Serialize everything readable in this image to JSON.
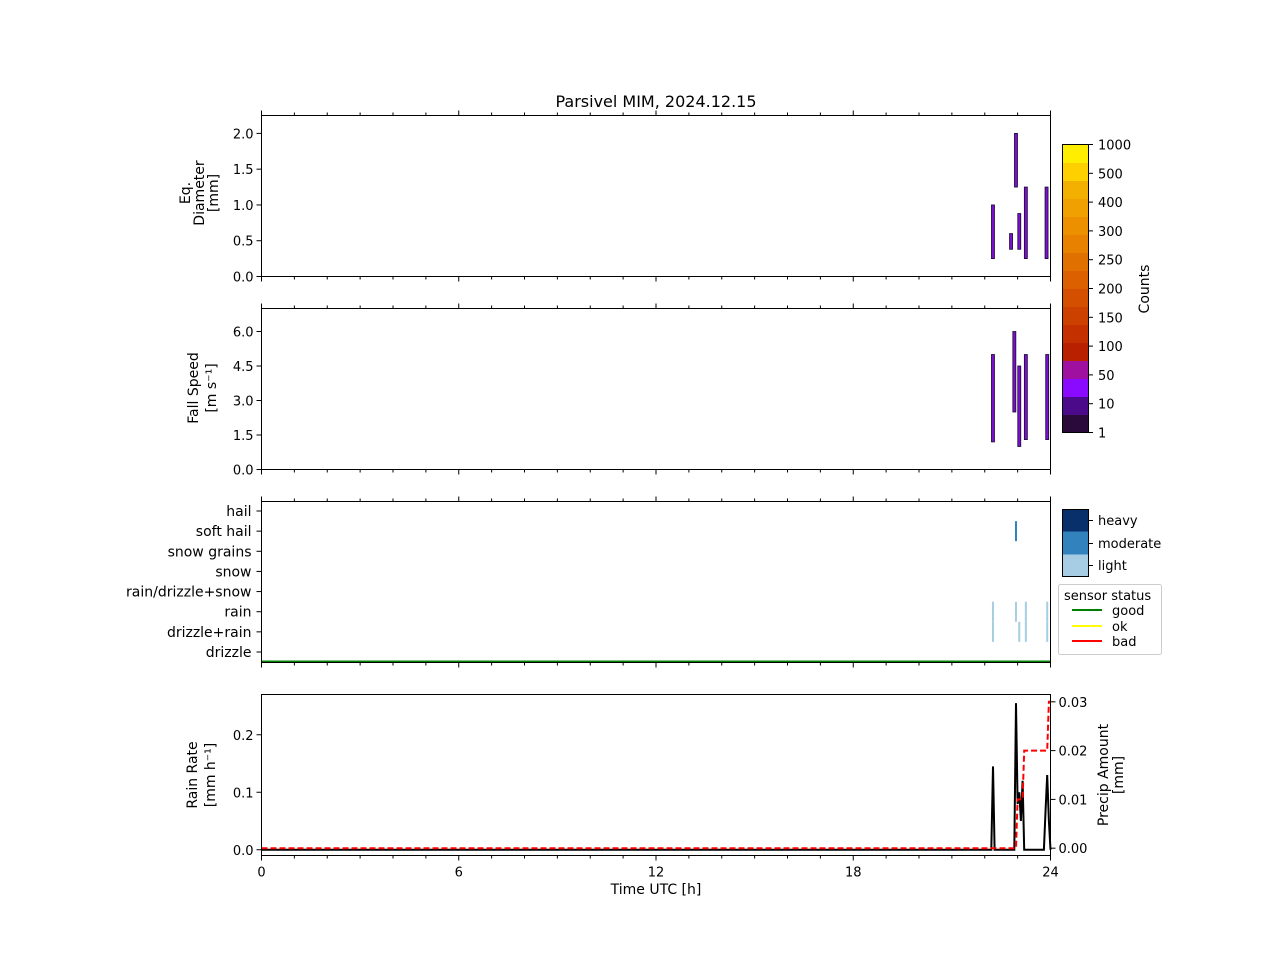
{
  "chart_data": [
    {
      "type": "heatmap",
      "title": "Parsivel MIM, 2024.12.15",
      "ylabel": [
        "Eq.",
        "Diameter",
        "[mm]"
      ],
      "xlim": [
        0,
        24
      ],
      "ylim": [
        0,
        2.25
      ],
      "yticks": [
        0.0,
        0.5,
        1.0,
        1.5,
        2.0
      ],
      "ytick_labels": [
        "0.0",
        "0.5",
        "1.0",
        "1.5",
        "2.0"
      ],
      "events": [
        {
          "t": 22.25,
          "y0": 0.25,
          "y1": 1.0
        },
        {
          "t": 22.8,
          "y0": 0.38,
          "y1": 0.6
        },
        {
          "t": 22.95,
          "y0": 1.25,
          "y1": 2.0
        },
        {
          "t": 23.05,
          "y0": 0.38,
          "y1": 0.88
        },
        {
          "t": 23.25,
          "y0": 0.25,
          "y1": 1.25
        },
        {
          "t": 23.88,
          "y0": 0.25,
          "y1": 1.25
        }
      ]
    },
    {
      "type": "heatmap",
      "ylabel": [
        "Fall Speed",
        "[m s⁻¹]"
      ],
      "xlim": [
        0,
        24
      ],
      "ylim": [
        0,
        7.0
      ],
      "yticks": [
        0.0,
        1.5,
        3.0,
        4.5,
        6.0
      ],
      "ytick_labels": [
        "0.0",
        "1.5",
        "3.0",
        "4.5",
        "6.0"
      ],
      "events": [
        {
          "t": 22.25,
          "y0": 1.2,
          "y1": 5.0
        },
        {
          "t": 22.9,
          "y0": 2.5,
          "y1": 6.0
        },
        {
          "t": 23.05,
          "y0": 1.0,
          "y1": 4.5
        },
        {
          "t": 23.25,
          "y0": 1.3,
          "y1": 5.0
        },
        {
          "t": 23.9,
          "y0": 1.3,
          "y1": 5.0
        }
      ]
    },
    {
      "type": "scatter",
      "categories": [
        "drizzle",
        "drizzle+rain",
        "rain",
        "rain/drizzle+snow",
        "snow",
        "snow grains",
        "soft hail",
        "hail"
      ],
      "xlim": [
        0,
        24
      ],
      "legend_title": "sensor status",
      "legend_placement": "right",
      "intensity_legend": [
        "heavy",
        "moderate",
        "light"
      ],
      "status_legend": [
        "good",
        "ok",
        "bad"
      ],
      "status_line": "good",
      "marks": [
        {
          "t": 22.25,
          "category": "rain",
          "intensity": "light"
        },
        {
          "t": 22.25,
          "category": "drizzle+rain",
          "intensity": "light"
        },
        {
          "t": 22.95,
          "category": "soft hail",
          "intensity": "moderate"
        },
        {
          "t": 22.95,
          "category": "rain",
          "intensity": "light"
        },
        {
          "t": 23.05,
          "category": "drizzle+rain",
          "intensity": "light"
        },
        {
          "t": 23.25,
          "category": "rain",
          "intensity": "light"
        },
        {
          "t": 23.25,
          "category": "drizzle+rain",
          "intensity": "light"
        },
        {
          "t": 23.9,
          "category": "rain",
          "intensity": "light"
        },
        {
          "t": 23.9,
          "category": "drizzle+rain",
          "intensity": "light"
        }
      ]
    },
    {
      "type": "line",
      "xlabel": "Time UTC [h]",
      "ylabel": [
        "Rain Rate",
        "[mm h⁻¹]"
      ],
      "ylabel_right": [
        "Precip Amount",
        "[mm]"
      ],
      "xlim": [
        0,
        24
      ],
      "xticks": [
        0,
        6,
        12,
        18,
        24
      ],
      "xtick_labels": [
        "0",
        "6",
        "12",
        "18",
        "24"
      ],
      "ylim": [
        -0.01,
        0.27
      ],
      "yticks": [
        0.0,
        0.1,
        0.2
      ],
      "ytick_labels": [
        "0.0",
        "0.1",
        "0.2"
      ],
      "ylim_right": [
        -0.0015,
        0.0315
      ],
      "yticks_right": [
        0.0,
        0.01,
        0.02,
        0.03
      ],
      "ytick_labels_right": [
        "0.00",
        "0.01",
        "0.02",
        "0.03"
      ],
      "series": [
        {
          "axis": "left",
          "color": "#000000",
          "x": [
            0,
            22.2,
            22.25,
            22.3,
            22.9,
            22.95,
            23.0,
            23.05,
            23.1,
            23.15,
            23.2,
            23.25,
            23.3,
            23.8,
            23.85,
            23.9,
            23.95,
            24
          ],
          "y": [
            0,
            0,
            0.145,
            0,
            0,
            0.255,
            0.08,
            0.1,
            0.05,
            0.12,
            0.0,
            0.0,
            0.0,
            0.0,
            0.07,
            0.13,
            0.05,
            0
          ]
        },
        {
          "axis": "right",
          "color": "#ff0000",
          "dashed": true,
          "x": [
            0,
            22.95,
            23.0,
            23.15,
            23.2,
            23.9,
            23.95,
            24
          ],
          "y": [
            0,
            0,
            0.01,
            0.01,
            0.02,
            0.02,
            0.03,
            0.03
          ]
        }
      ]
    }
  ],
  "colorbar": {
    "label": "Counts",
    "tick_labels": [
      "1",
      "10",
      "50",
      "100",
      "150",
      "200",
      "250",
      "300",
      "400",
      "500",
      "1000"
    ],
    "colors": [
      "#2a0a3a",
      "#4a0a8a",
      "#8a0aff",
      "#a010a0",
      "#b82000",
      "#c43000",
      "#cc4000",
      "#d45000",
      "#dc6000",
      "#e07000",
      "#e88000",
      "#ec9000",
      "#f0a000",
      "#f4b000",
      "#ffd000",
      "#ffee00"
    ]
  },
  "colors": {
    "good": "#008000",
    "ok": "#ffff00",
    "bad": "#ff0000",
    "heavy": "#08306b",
    "moderate": "#3182bd",
    "light": "#a6cde3",
    "event_fill": "#7a10d0",
    "event_edge": "#1a0a2a"
  }
}
